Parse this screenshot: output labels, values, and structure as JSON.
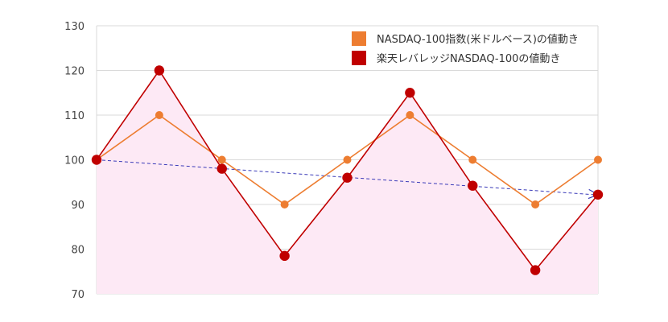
{
  "chart_data": {
    "type": "line",
    "x": [
      0,
      1,
      2,
      3,
      4,
      5,
      6,
      7,
      8
    ],
    "ylim": [
      70,
      130
    ],
    "yticks": [
      "70",
      "80",
      "90",
      "100",
      "110",
      "120",
      "130"
    ],
    "grid": true,
    "legend_position": "top-right",
    "series": [
      {
        "name": "NASDAQ-100指数(米ドルベース)の値動き",
        "color": "#ED7D31",
        "values": [
          100,
          110,
          100,
          90,
          100,
          110,
          100,
          90,
          100
        ]
      },
      {
        "name": "楽天レバレッジNASDAQ-100の値動き",
        "color": "#C00000",
        "values": [
          100,
          120,
          98,
          78.5,
          96,
          115,
          94.2,
          75.3,
          92.2
        ],
        "fill": "#FDE9F5"
      }
    ],
    "trend": {
      "from": 100,
      "to": 92.2,
      "color": "#3A3AB8"
    }
  }
}
